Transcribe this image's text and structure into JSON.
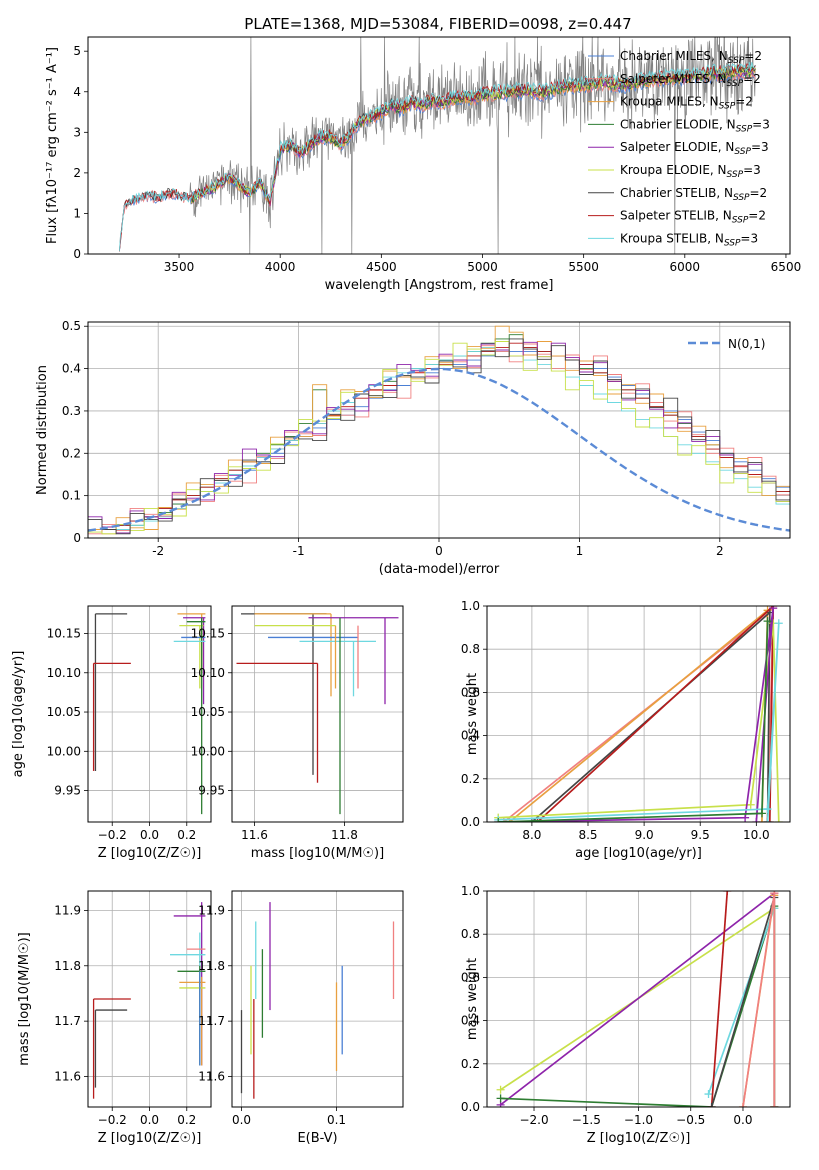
{
  "figure_title": "PLATE=1368, MJD=53084, FIBERID=0098, z=0.447",
  "colors": {
    "Chabrier MILES": "#4a7fd4",
    "Salpeter MILES": "#f08080",
    "Kroupa MILES": "#e8a040",
    "Chabrier ELODIE": "#2e7d32",
    "Salpeter ELODIE": "#8e24aa",
    "Kroupa ELODIE": "#c8e04a",
    "Chabrier STELIB": "#444444",
    "Salpeter STELIB": "#b71c1c",
    "Kroupa STELIB": "#6ed8e0",
    "data": "#808080",
    "gaussian": "#5b8bd6"
  },
  "legend_spectrum": [
    "Chabrier MILES, N$_{SSP}$=2",
    "Salpeter MILES, N$_{SSP}$=2",
    "Kroupa MILES, N$_{SSP}$=2",
    "Chabrier ELODIE, N$_{SSP}$=3",
    "Salpeter ELODIE, N$_{SSP}$=3",
    "Kroupa ELODIE, N$_{SSP}$=3",
    "Chabrier STELIB, N$_{SSP}$=2",
    "Salpeter STELIB, N$_{SSP}$=2",
    "Kroupa STELIB, N$_{SSP}$=3"
  ],
  "legend_spectrum_display": [
    "Chabrier MILES, NSSP=2",
    "Salpeter MILES, NSSP=2",
    "Kroupa MILES, NSSP=2",
    "Chabrier ELODIE, NSSP=3",
    "Salpeter ELODIE, NSSP=3",
    "Kroupa ELODIE, NSSP=3",
    "Chabrier STELIB, NSSP=2",
    "Salpeter STELIB, NSSP=2",
    "Kroupa STELIB, NSSP=3"
  ],
  "legend_hist": "N(0,1)",
  "chart_data": [
    {
      "type": "line",
      "id": "spectrum",
      "xlabel": "wavelength [Angstrom, rest frame]",
      "ylabel": "Flux [fλ10⁻¹⁷ erg cm⁻² s⁻¹ A⁻¹]",
      "xlim": [
        3050,
        6520
      ],
      "ylim": [
        0,
        5.35
      ],
      "xticks": [
        3500,
        4000,
        4500,
        5000,
        5500,
        6000,
        6500
      ],
      "yticks": [
        0,
        1,
        2,
        3,
        4,
        5
      ],
      "grid": false,
      "legend_position": "top-right",
      "model_continuum": {
        "x": [
          3200,
          3230,
          3280,
          3350,
          3400,
          3450,
          3500,
          3550,
          3600,
          3650,
          3700,
          3750,
          3800,
          3850,
          3900,
          3950,
          4000,
          4050,
          4100,
          4150,
          4200,
          4250,
          4300,
          4350,
          4400,
          4450,
          4500,
          4550,
          4600,
          4650,
          4700,
          4750,
          4800,
          4850,
          4900,
          4950,
          5000,
          5100,
          5200,
          5300,
          5400,
          5500,
          5600,
          5700,
          5800,
          5900,
          6000,
          6100,
          6200,
          6350
        ],
        "y": [
          0.0,
          1.15,
          1.35,
          1.45,
          1.4,
          1.5,
          1.45,
          1.35,
          1.5,
          1.6,
          1.75,
          1.9,
          1.7,
          1.5,
          1.8,
          1.3,
          2.6,
          2.7,
          2.5,
          2.7,
          2.9,
          2.9,
          2.7,
          3.0,
          3.3,
          3.4,
          3.5,
          3.7,
          3.6,
          3.75,
          3.7,
          3.8,
          3.75,
          3.85,
          3.9,
          3.85,
          3.95,
          4.0,
          4.05,
          4.0,
          4.15,
          4.2,
          4.25,
          4.2,
          4.3,
          4.35,
          4.4,
          4.45,
          4.5,
          4.55
        ]
      }
    },
    {
      "type": "histogram",
      "id": "residuals",
      "xlabel": "(data-model)/error",
      "ylabel": "Normed distribution",
      "xlim": [
        -2.5,
        2.5
      ],
      "ylim": [
        0,
        0.51
      ],
      "xticks": [
        -2,
        -1,
        0,
        1,
        2
      ],
      "yticks": [
        0.0,
        0.1,
        0.2,
        0.3,
        0.4,
        0.5
      ],
      "grid": true,
      "legend_position": "top-right",
      "bin_width": 0.1,
      "series": [
        {
          "model": "Chabrier MILES",
          "values": [
            0.02,
            0.02,
            0.03,
            0.04,
            0.05,
            0.07,
            0.08,
            0.09,
            0.11,
            0.13,
            0.14,
            0.16,
            0.18,
            0.2,
            0.22,
            0.24,
            0.26,
            0.28,
            0.29,
            0.31,
            0.33,
            0.35,
            0.36,
            0.38,
            0.39,
            0.4,
            0.41,
            0.42,
            0.43,
            0.44,
            0.44,
            0.44,
            0.44,
            0.43,
            0.42,
            0.41,
            0.4,
            0.38,
            0.36,
            0.34,
            0.32,
            0.3,
            0.28,
            0.25,
            0.23,
            0.2,
            0.18,
            0.16,
            0.14,
            0.12
          ]
        },
        {
          "model": "Chabrier ELODIE",
          "values": [
            0.02,
            0.02,
            0.03,
            0.03,
            0.05,
            0.06,
            0.08,
            0.1,
            0.12,
            0.14,
            0.16,
            0.18,
            0.2,
            0.22,
            0.24,
            0.27,
            0.35,
            0.3,
            0.32,
            0.34,
            0.35,
            0.37,
            0.38,
            0.4,
            0.41,
            0.42,
            0.43,
            0.44,
            0.46,
            0.47,
            0.48,
            0.45,
            0.44,
            0.43,
            0.42,
            0.4,
            0.39,
            0.37,
            0.35,
            0.33,
            0.31,
            0.29,
            0.27,
            0.24,
            0.22,
            0.19,
            0.17,
            0.15,
            0.13,
            0.11
          ]
        },
        {
          "model": "Salpeter STELIB",
          "values": [
            0.02,
            0.02,
            0.03,
            0.04,
            0.05,
            0.07,
            0.09,
            0.1,
            0.12,
            0.14,
            0.16,
            0.18,
            0.19,
            0.21,
            0.23,
            0.25,
            0.27,
            0.29,
            0.31,
            0.33,
            0.35,
            0.36,
            0.38,
            0.39,
            0.4,
            0.41,
            0.42,
            0.43,
            0.44,
            0.45,
            0.46,
            0.45,
            0.44,
            0.43,
            0.42,
            0.41,
            0.39,
            0.37,
            0.35,
            0.33,
            0.31,
            0.29,
            0.26,
            0.24,
            0.21,
            0.19,
            0.17,
            0.15,
            0.13,
            0.11
          ]
        },
        {
          "model": "Kroupa STELIB",
          "values": [
            0.02,
            0.02,
            0.02,
            0.03,
            0.04,
            0.05,
            0.07,
            0.09,
            0.11,
            0.13,
            0.15,
            0.17,
            0.19,
            0.21,
            0.23,
            0.25,
            0.27,
            0.3,
            0.32,
            0.34,
            0.36,
            0.38,
            0.39,
            0.4,
            0.41,
            0.42,
            0.43,
            0.44,
            0.45,
            0.44,
            0.43,
            0.42,
            0.41,
            0.4,
            0.38,
            0.36,
            0.34,
            0.32,
            0.3,
            0.28,
            0.26,
            0.24,
            0.22,
            0.2,
            0.18,
            0.16,
            0.14,
            0.12,
            0.1,
            0.08
          ]
        }
      ],
      "gaussian": {
        "label": "N(0,1)",
        "mu": 0,
        "sigma": 1
      }
    },
    {
      "type": "errorbar",
      "id": "age-vs-Z",
      "xlabel": "Z [log10(Z/Z☉)]",
      "ylabel": "age [log10(age/yr)]",
      "xlim": [
        -0.33,
        0.33
      ],
      "ylim": [
        9.91,
        10.185
      ],
      "xticks": [
        -0.2,
        0.0,
        0.2
      ],
      "xtick_labels": [
        "−0.2",
        "0.0",
        "0.2"
      ],
      "yticks": [
        9.95,
        10.0,
        10.05,
        10.1,
        10.15
      ],
      "ytick_labels": [
        "9.95",
        "10.00",
        "10.05",
        "10.10",
        "10.15"
      ]
    },
    {
      "type": "errorbar",
      "id": "age-vs-mass",
      "xlabel": "mass [log10(M/M☉)]",
      "ylabel": "",
      "xlim": [
        11.55,
        11.93
      ],
      "ylim": [
        9.91,
        10.185
      ],
      "xticks": [
        11.6,
        11.8
      ],
      "xtick_labels": [
        "11.6",
        "11.8"
      ],
      "yticks": [
        9.95,
        10.0,
        10.05,
        10.1,
        10.15
      ],
      "ytick_labels": [
        "9.95",
        "10.00",
        "10.05",
        "10.10",
        "10.15"
      ]
    },
    {
      "type": "line",
      "id": "mass-weight-vs-age",
      "xlabel": "age [log10(age/yr)]",
      "ylabel": "mass weight",
      "xlim": [
        7.6,
        10.3
      ],
      "ylim": [
        0,
        1
      ],
      "xticks": [
        8.0,
        8.5,
        9.0,
        9.5,
        10.0
      ],
      "xtick_labels": [
        "8.0",
        "8.5",
        "9.0",
        "9.5",
        "10.0"
      ],
      "yticks": [
        0.0,
        0.2,
        0.4,
        0.6,
        0.8,
        1.0
      ],
      "ytick_labels": [
        "0.0",
        "0.2",
        "0.4",
        "0.6",
        "0.8",
        "1.0"
      ],
      "grid": true,
      "series": [
        {
          "model": "Salpeter MILES",
          "x": [
            7.75,
            10.15,
            10.1
          ],
          "y": [
            0.0,
            0.99,
            0.0
          ]
        },
        {
          "model": "Kroupa MILES",
          "x": [
            7.8,
            10.1,
            10.05
          ],
          "y": [
            0.0,
            0.98,
            0.0
          ]
        },
        {
          "model": "Chabrier STELIB",
          "x": [
            8.0,
            10.12,
            10.1
          ],
          "y": [
            0.0,
            0.97,
            0.0
          ]
        },
        {
          "model": "Salpeter STELIB",
          "x": [
            8.05,
            10.15,
            10.12
          ],
          "y": [
            0.0,
            1.0,
            0.0
          ]
        },
        {
          "model": "Kroupa ELODIE",
          "x": [
            7.7,
            9.95,
            10.15,
            10.2
          ],
          "y": [
            0.02,
            0.08,
            0.92,
            0.0
          ]
        },
        {
          "model": "Salpeter ELODIE",
          "x": [
            7.7,
            9.9,
            10.15,
            10.0
          ],
          "y": [
            0.0,
            0.02,
            0.99,
            0.0
          ]
        },
        {
          "model": "Kroupa STELIB",
          "x": [
            7.7,
            10.1,
            10.2,
            10.1
          ],
          "y": [
            0.01,
            0.06,
            0.92,
            0.0
          ]
        },
        {
          "model": "Chabrier ELODIE",
          "x": [
            7.7,
            10.05,
            10.1
          ],
          "y": [
            0.0,
            0.04,
            0.93
          ]
        }
      ]
    },
    {
      "type": "errorbar",
      "id": "mass-vs-Z",
      "xlabel": "Z [log10(Z/Z☉)]",
      "ylabel": "mass [log10(M/M☉)]",
      "xlim": [
        -0.33,
        0.33
      ],
      "ylim": [
        11.545,
        11.935
      ],
      "xticks": [
        -0.2,
        0.0,
        0.2
      ],
      "xtick_labels": [
        "−0.2",
        "0.0",
        "0.2"
      ],
      "yticks": [
        11.6,
        11.7,
        11.8,
        11.9
      ],
      "ytick_labels": [
        "11.6",
        "11.7",
        "11.8",
        "11.9"
      ]
    },
    {
      "type": "errorbar",
      "id": "mass-vs-ebv",
      "xlabel": "E(B-V)",
      "ylabel": "",
      "xlim": [
        -0.01,
        0.17
      ],
      "ylim": [
        11.545,
        11.935
      ],
      "xticks": [
        0.0,
        0.1
      ],
      "xtick_labels": [
        "0.0",
        "0.1"
      ],
      "yticks": [
        11.6,
        11.7,
        11.8,
        11.9
      ],
      "ytick_labels": [
        "11.6",
        "11.7",
        "11.8",
        "11.9"
      ]
    },
    {
      "type": "line",
      "id": "mass-weight-vs-Z",
      "xlabel": "Z [log10(Z/Z☉)]",
      "ylabel": "mass weight",
      "xlim": [
        -2.45,
        0.45
      ],
      "ylim": [
        0,
        1
      ],
      "xticks": [
        -2.0,
        -1.5,
        -1.0,
        -0.5,
        0.0
      ],
      "xtick_labels": [
        "−2.0",
        "−1.5",
        "−1.0",
        "−0.5",
        "0.0"
      ],
      "yticks": [
        0.0,
        0.2,
        0.4,
        0.6,
        0.8,
        1.0
      ],
      "ytick_labels": [
        "0.0",
        "0.2",
        "0.4",
        "0.6",
        "0.8",
        "1.0"
      ],
      "grid": true,
      "series": [
        {
          "model": "Kroupa ELODIE",
          "x": [
            -2.32,
            0.3,
            0.3
          ],
          "y": [
            0.08,
            0.92,
            0.0
          ]
        },
        {
          "model": "Salpeter ELODIE",
          "x": [
            -2.32,
            0.3,
            0.3
          ],
          "y": [
            0.01,
            0.99,
            0.0
          ]
        },
        {
          "model": "Chabrier ELODIE",
          "x": [
            -2.32,
            -0.3,
            0.3,
            0.3
          ],
          "y": [
            0.04,
            0.0,
            0.93,
            0.0
          ]
        },
        {
          "model": "Kroupa STELIB",
          "x": [
            -0.33,
            0.3,
            0.3
          ],
          "y": [
            0.06,
            0.92,
            0.0
          ]
        },
        {
          "model": "Salpeter STELIB",
          "x": [
            -0.15,
            -0.3
          ],
          "y": [
            1.0,
            0.0
          ]
        },
        {
          "model": "Chabrier STELIB",
          "x": [
            -0.3,
            0.3
          ],
          "y": [
            0.0,
            0.97
          ]
        },
        {
          "model": "Kroupa MILES",
          "x": [
            0.0,
            0.3,
            0.3
          ],
          "y": [
            0.0,
            0.98,
            0.0
          ]
        },
        {
          "model": "Salpeter MILES",
          "x": [
            0.0,
            0.3,
            0.3
          ],
          "y": [
            0.0,
            0.99,
            0.0
          ]
        }
      ]
    }
  ]
}
